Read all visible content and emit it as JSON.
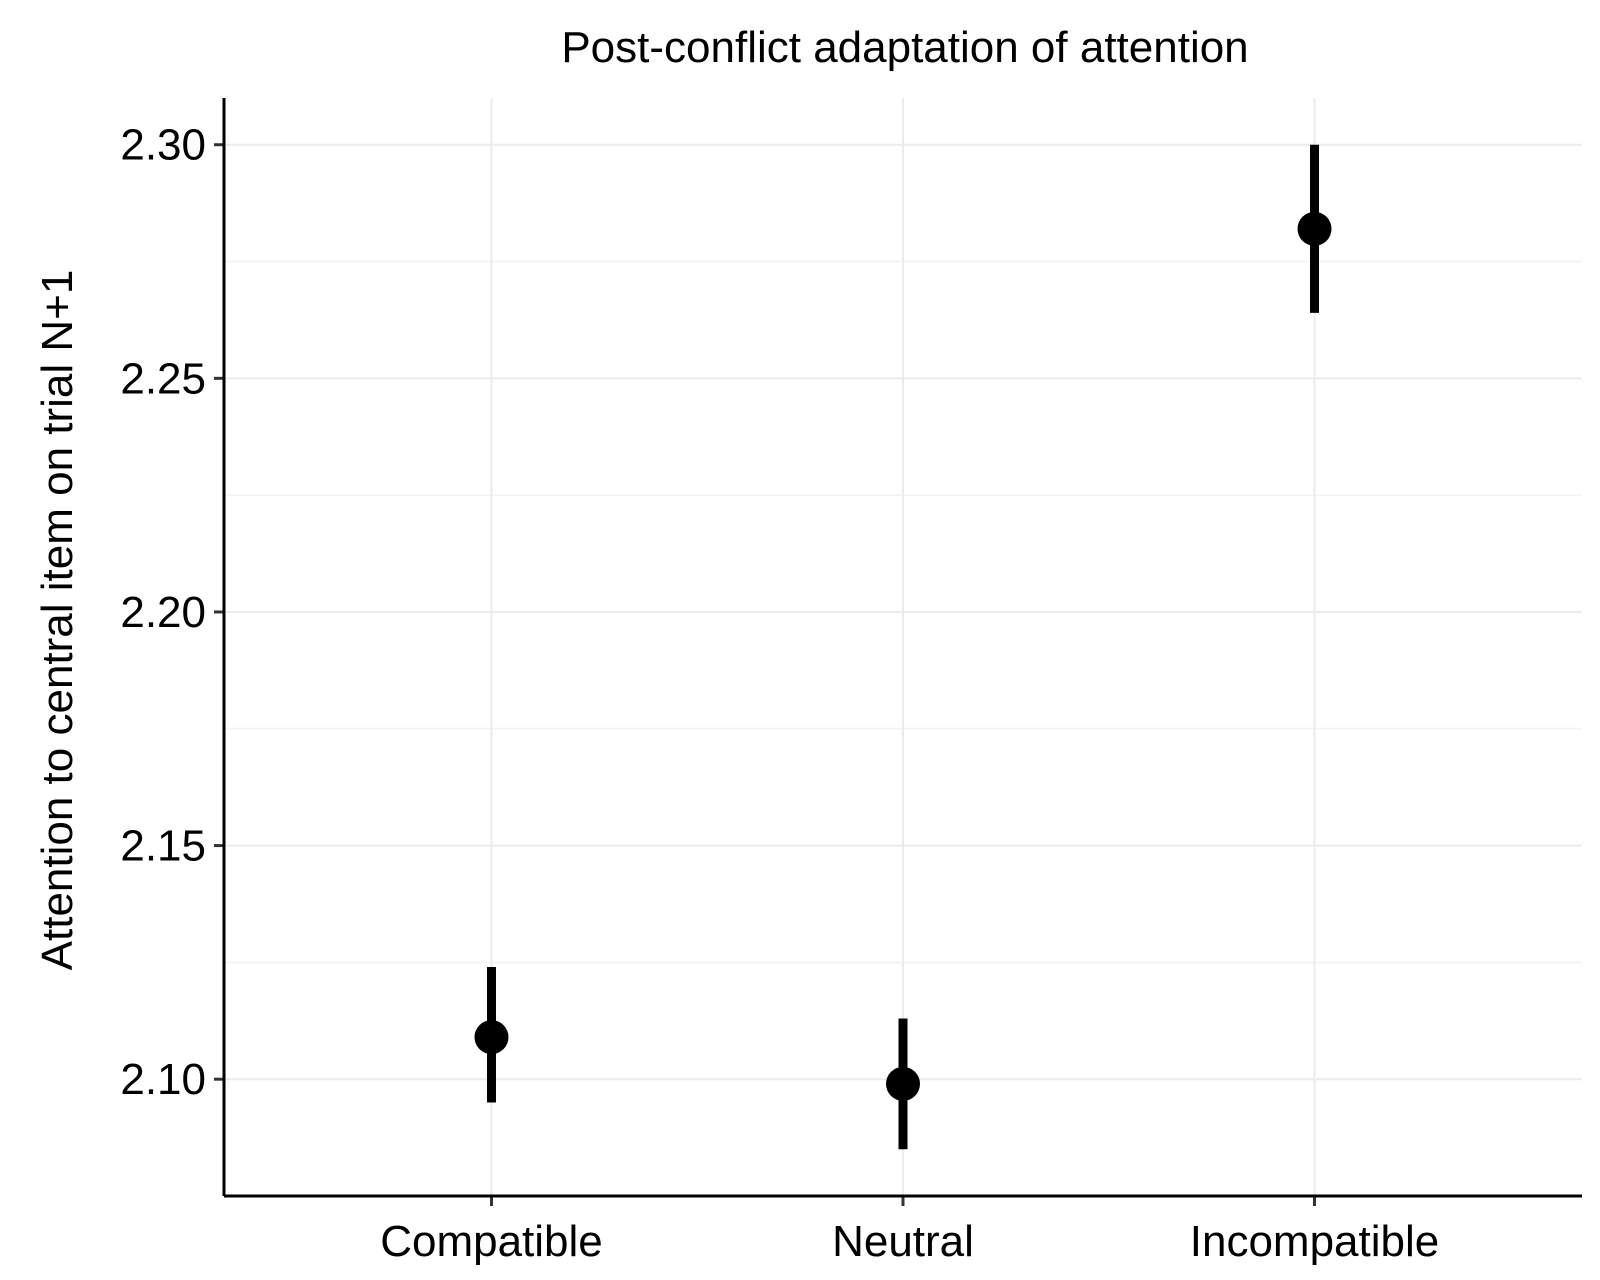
{
  "chart_data": {
    "type": "scatter",
    "title": "Post-conflict adaptation of attention",
    "xlabel": "",
    "ylabel": "Attention to central item on trial N+1",
    "categories": [
      "Compatible",
      "Neutral",
      "Incompatible"
    ],
    "series": [
      {
        "values": [
          2.109,
          2.099,
          2.282
        ],
        "lower": [
          2.095,
          2.085,
          2.264
        ],
        "upper": [
          2.124,
          2.113,
          2.3
        ]
      }
    ],
    "ylim": [
      2.075,
      2.31
    ],
    "yticks": [
      2.1,
      2.15,
      2.2,
      2.25,
      2.3
    ],
    "ytick_labels": [
      "2.10",
      "2.15",
      "2.20",
      "2.25",
      "2.30"
    ],
    "yminor": [
      2.125,
      2.175,
      2.225,
      2.275
    ],
    "grid": true,
    "legend": "none",
    "colors": {
      "point": "#000000",
      "grid": "#ebebeb"
    }
  }
}
